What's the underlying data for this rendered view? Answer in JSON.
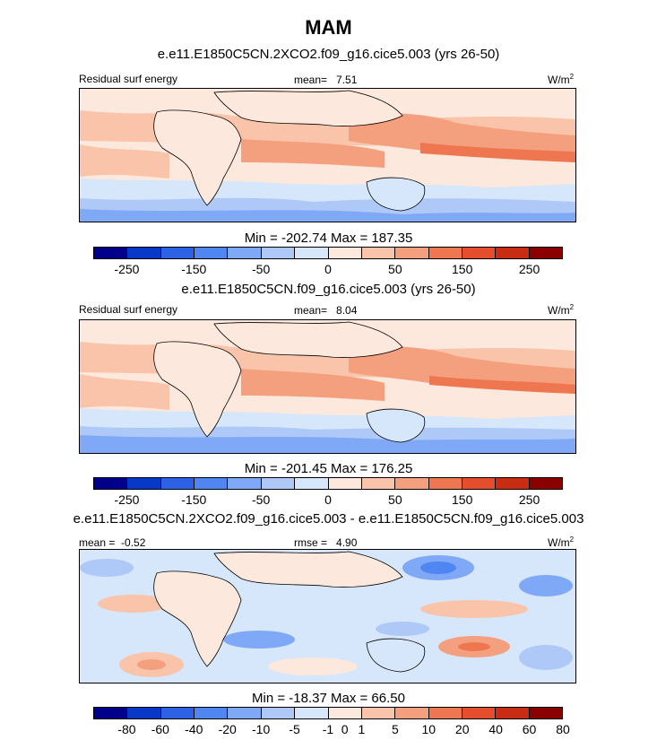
{
  "figure": {
    "title": "MAM"
  },
  "colors": {
    "units_sup": "2",
    "land_outline": "#000000",
    "palette": [
      "#00008b",
      "#0838c8",
      "#2d62e6",
      "#4f86f2",
      "#7fa8f6",
      "#aec8f8",
      "#d6e6fb",
      "#fce8dc",
      "#f9c4aa",
      "#f4a07e",
      "#ee7752",
      "#e44e2c",
      "#c82c12",
      "#8b0000"
    ]
  },
  "chart_data": [
    {
      "type": "heatmap",
      "title": "e.e11.E1850C5CN.2XCO2.f09_g16.cice5.003 (yrs 26-50)",
      "left_label": "Residual surf energy",
      "center_label": "mean=",
      "center_value": "7.51",
      "units": "W/m",
      "min_max_text": "Min = -202.74 Max = 187.35",
      "min": -202.74,
      "max": 187.35,
      "mean": 7.51,
      "colorbar_ticks": [
        "-250",
        "-150",
        "-50",
        "0",
        "50",
        "150",
        "250"
      ],
      "colorbar_tick_boundaries": [
        1,
        3,
        5,
        7,
        9,
        11,
        13
      ]
    },
    {
      "type": "heatmap",
      "title": "e.e11.E1850C5CN.f09_g16.cice5.003 (yrs 26-50)",
      "left_label": "Residual surf energy",
      "center_label": "mean=",
      "center_value": "8.04",
      "units": "W/m",
      "min_max_text": "Min = -201.45 Max = 176.25",
      "min": -201.45,
      "max": 176.25,
      "mean": 8.04,
      "colorbar_ticks": [
        "-250",
        "-150",
        "-50",
        "0",
        "50",
        "150",
        "250"
      ],
      "colorbar_tick_boundaries": [
        1,
        3,
        5,
        7,
        9,
        11,
        13
      ]
    },
    {
      "type": "heatmap",
      "title": "e.e11.E1850C5CN.2XCO2.f09_g16.cice5.003 - e.e11.E1850C5CN.f09_g16.cice5.003",
      "left_label": "mean =",
      "left_value": "-0.52",
      "center_label": "rmse =",
      "center_value": "4.90",
      "units": "W/m",
      "min_max_text": "Min = -18.37 Max = 66.50",
      "min": -18.37,
      "max": 66.5,
      "mean": -0.52,
      "rmse": 4.9,
      "colorbar_ticks": [
        "-80",
        "-60",
        "-40",
        "-20",
        "-10",
        "-5",
        "-1",
        "0",
        "1",
        "5",
        "10",
        "20",
        "40",
        "60",
        "80"
      ],
      "colorbar_tick_boundaries": [
        1,
        2,
        3,
        4,
        5,
        6,
        7,
        7.5,
        8,
        9,
        10,
        11,
        12,
        13,
        14
      ]
    }
  ]
}
